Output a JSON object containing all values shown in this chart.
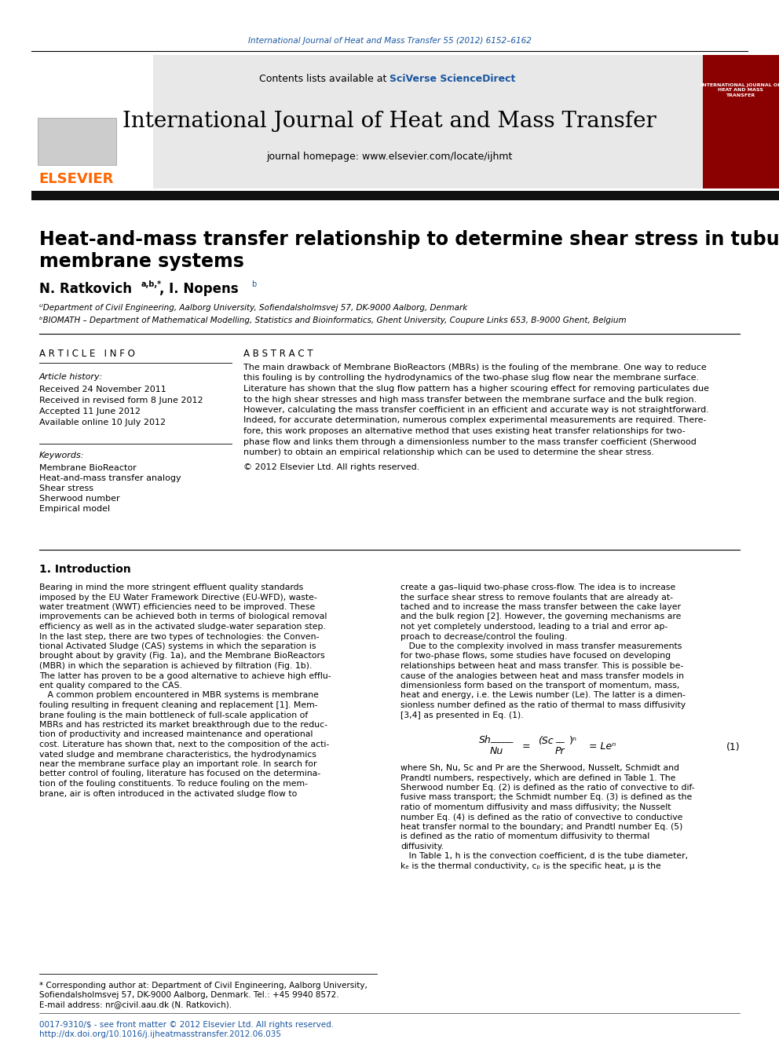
{
  "journal_citation": "International Journal of Heat and Mass Transfer 55 (2012) 6152–6162",
  "journal_name": "International Journal of Heat and Mass Transfer",
  "journal_homepage": "journal homepage: www.elsevier.com/locate/ijhmt",
  "contents_line": "Contents lists available at SciVerse ScienceDirect",
  "paper_title_line1": "Heat-and-mass transfer relationship to determine shear stress in tubular",
  "paper_title_line2": "membrane systems",
  "authors": "N. Ratkovich",
  "authors_superscript": "a,b,*",
  "authors2": ", I. Nopens",
  "authors2_superscript": "b",
  "affil_a": "ᵁDepartment of Civil Engineering, Aalborg University, Sofiendalsholmsvej 57, DK-9000 Aalborg, Denmark",
  "affil_b": "ᵇBIOMATH – Department of Mathematical Modelling, Statistics and Bioinformatics, Ghent University, Coupure Links 653, B-9000 Ghent, Belgium",
  "section_article_info": "A R T I C L E   I N F O",
  "section_abstract": "A B S T R A C T",
  "article_history_label": "Article history:",
  "received": "Received 24 November 2011",
  "received_revised": "Received in revised form 8 June 2012",
  "accepted": "Accepted 11 June 2012",
  "available": "Available online 10 July 2012",
  "keywords_label": "Keywords:",
  "kw1": "Membrane BioReactor",
  "kw2": "Heat-and-mass transfer analogy",
  "kw3": "Shear stress",
  "kw4": "Sherwood number",
  "kw5": "Empirical model",
  "abstract_text": "The main drawback of Membrane BioReactors (MBRs) is the fouling of the membrane. One way to reduce\nthis fouling is by controlling the hydrodynamics of the two-phase slug flow near the membrane surface.\nLiterature has shown that the slug flow pattern has a higher scouring effect for removing particulates due\nto the high shear stresses and high mass transfer between the membrane surface and the bulk region.\nHowever, calculating the mass transfer coefficient in an efficient and accurate way is not straightforward.\nIndeed, for accurate determination, numerous complex experimental measurements are required. There-\nfore, this work proposes an alternative method that uses existing heat transfer relationships for two-\nphase flow and links them through a dimensionless number to the mass transfer coefficient (Sherwood\nnumber) to obtain an empirical relationship which can be used to determine the shear stress.",
  "copyright": "© 2012 Elsevier Ltd. All rights reserved.",
  "intro_heading": "1. Introduction",
  "intro_col1": "Bearing in mind the more stringent effluent quality standards\nimposed by the EU Water Framework Directive (EU-WFD), waste-\nwater treatment (WWT) efficiencies need to be improved. These\nimprovements can be achieved both in terms of biological removal\nefficiency as well as in the activated sludge-water separation step.\nIn the last step, there are two types of technologies: the Conven-\ntional Activated Sludge (CAS) systems in which the separation is\nbrought about by gravity (Fig. 1a), and the Membrane BioReactors\n(MBR) in which the separation is achieved by filtration (Fig. 1b).\nThe latter has proven to be a good alternative to achieve high efflu-\nent quality compared to the CAS.\n   A common problem encountered in MBR systems is membrane\nfouling resulting in frequent cleaning and replacement [1]. Mem-\nbrane fouling is the main bottleneck of full-scale application of\nMBRs and has restricted its market breakthrough due to the reduc-\ntion of productivity and increased maintenance and operational\ncost. Literature has shown that, next to the composition of the acti-\nvated sludge and membrane characteristics, the hydrodynamics\nnear the membrane surface play an important role. In search for\nbetter control of fouling, literature has focused on the determina-\ntion of the fouling constituents. To reduce fouling on the mem-\nbrane, air is often introduced in the activated sludge flow to",
  "intro_col2": "create a gas–liquid two-phase cross-flow. The idea is to increase\nthe surface shear stress to remove foulants that are already at-\ntached and to increase the mass transfer between the cake layer\nand the bulk region [2]. However, the governing mechanisms are\nnot yet completely understood, leading to a trial and error ap-\nproach to decrease/control the fouling.\n   Due to the complexity involved in mass transfer measurements\nfor two-phase flows, some studies have focused on developing\nrelationships between heat and mass transfer. This is possible be-\ncause of the analogies between heat and mass transfer models in\ndimensionless form based on the transport of momentum, mass,\nheat and energy, i.e. the Lewis number (Le). The latter is a dimen-\nsionless number defined as the ratio of thermal to mass diffusivity\n[3,4] as presented in Eq. (1).",
  "equation_label": "(1)",
  "equation_text": "Sh/Nu = (Sc/Pr)ⁿ = Leⁿ",
  "where_text": "where Sh, Nu, Sc and Pr are the Sherwood, Nusselt, Schmidt and\nPrandtl numbers, respectively, which are defined in Table 1. The\nSherwood number Eq. (2) is defined as the ratio of convective to dif-\nfusive mass transport; the Schmidt number Eq. (3) is defined as the\nratio of momentum diffusivity and mass diffusivity; the Nusselt\nnumber Eq. (4) is defined as the ratio of convective to conductive\nheat transfer normal to the boundary; and Prandtl number Eq. (5)\nis defined as the ratio of momentum diffusivity to thermal\ndiffusivity.\n   In Table 1, h is the convection coefficient, d is the tube diameter,\nkₑ is the thermal conductivity, cₚ is the specific heat, μ is the",
  "footnote_star": "* Corresponding author at: Department of Civil Engineering, Aalborg University,\nSofiendalsholmsvej 57, DK-9000 Aalborg, Denmark. Tel.: +45 9940 8572.\nE-mail address: nr@civil.aau.dk (N. Ratkovich).",
  "footnote_bottom": "0017-9310/$ - see front matter © 2012 Elsevier Ltd. All rights reserved.\nhttp://dx.doi.org/10.1016/j.ijheatmasstransfer.2012.06.035",
  "elsevier_color": "#FF6600",
  "link_color": "#1a56a0",
  "dark_red_color": "#8B0000",
  "header_bg": "#E8E8E8",
  "dark_bar_color": "#1a1a1a",
  "bg_color": "#FFFFFF"
}
